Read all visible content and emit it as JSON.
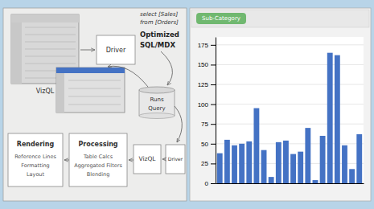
{
  "chart_data": {
    "type": "bar",
    "categories": [
      null,
      null,
      null,
      null,
      null,
      null,
      null,
      null,
      null,
      null,
      null,
      null,
      null,
      null,
      null,
      null,
      null,
      null,
      null,
      null
    ],
    "values": [
      38,
      55,
      48,
      50,
      53,
      95,
      42,
      8,
      52,
      54,
      37,
      40,
      70,
      4,
      60,
      165,
      162,
      48,
      18,
      62
    ],
    "color": "#4472C4",
    "ylim": [
      0,
      185
    ],
    "yticks": [
      0,
      25,
      50,
      75,
      100,
      125,
      150,
      175
    ],
    "grid": true,
    "annotations": [
      "VizQL",
      "Driver",
      "select [Sales]",
      "from [Orders]",
      "Optimized",
      "SQL/MDX",
      "Runs",
      "Query",
      "Rendering",
      "Reference Lines",
      "Formatting",
      "Layout",
      "Processing",
      "Table Calcs",
      "Aggregated Filters",
      "Blending",
      "VizQL",
      "Driver",
      "Sub-Category"
    ]
  }
}
